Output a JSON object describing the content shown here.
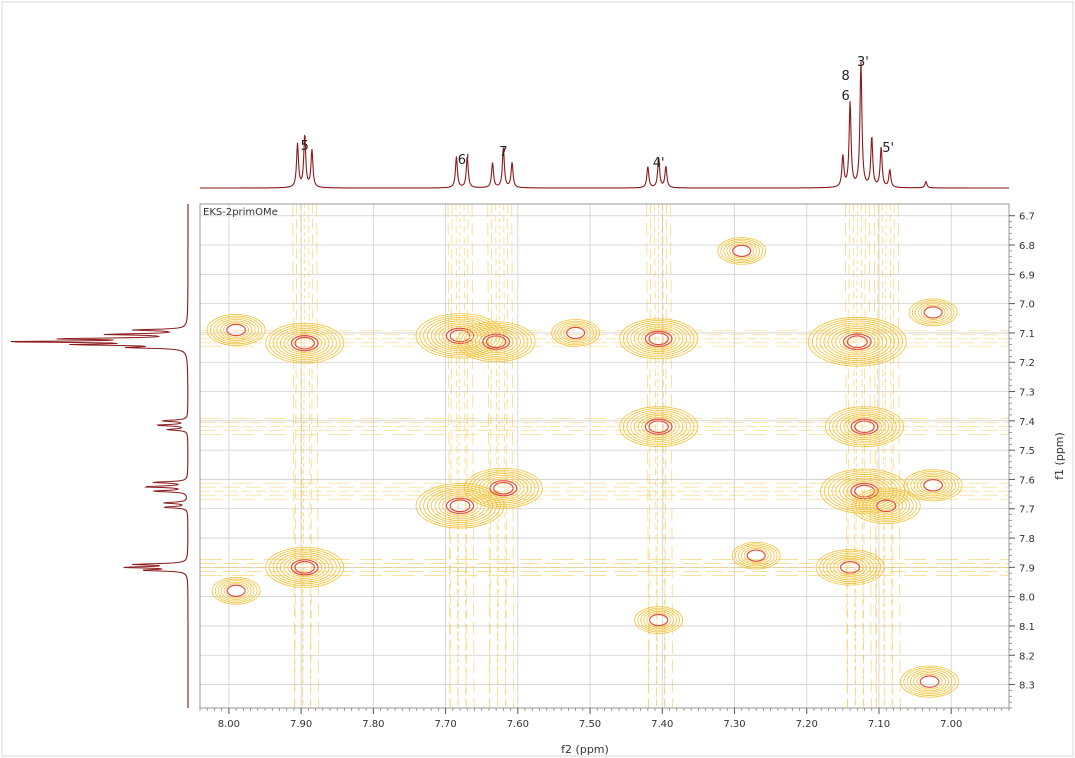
{
  "chart_data": {
    "type": "contour",
    "title": "",
    "dataset_label": "EKS-2primOMe",
    "xlabel": "f2 (ppm)",
    "ylabel": "f1 (ppm)",
    "xlim": [
      8.04,
      6.92
    ],
    "ylim": [
      6.66,
      8.38
    ],
    "x_ticks": [
      "8.00",
      "7.90",
      "7.80",
      "7.70",
      "7.60",
      "7.50",
      "7.40",
      "7.30",
      "7.20",
      "7.10",
      "7.00"
    ],
    "y_ticks": [
      "6.7",
      "6.8",
      "6.9",
      "7.0",
      "7.1",
      "7.2",
      "7.3",
      "7.4",
      "7.5",
      "7.6",
      "7.7",
      "7.8",
      "7.9",
      "8.0",
      "8.1",
      "8.2",
      "8.3"
    ],
    "grid": true,
    "colors": {
      "spectrum": "#8b1a1a",
      "contour_low": "#f3c23a",
      "contour_high": "#e0503c",
      "grid": "#cfcfcf"
    },
    "top_spectrum_labels": [
      {
        "text": "5",
        "ppm": 7.895
      },
      {
        "text": "6'",
        "ppm": 7.675
      },
      {
        "text": "7",
        "ppm": 7.62
      },
      {
        "text": "4'",
        "ppm": 7.405
      },
      {
        "text": "6",
        "ppm": 7.135
      },
      {
        "text": "8",
        "ppm": 7.135
      },
      {
        "text": "3'",
        "ppm": 7.125
      },
      {
        "text": "5'",
        "ppm": 7.09
      }
    ],
    "spectrum_peaks": [
      {
        "ppm": 7.905,
        "height": 0.35
      },
      {
        "ppm": 7.895,
        "height": 0.42
      },
      {
        "ppm": 7.885,
        "height": 0.3
      },
      {
        "ppm": 7.685,
        "height": 0.25
      },
      {
        "ppm": 7.67,
        "height": 0.25
      },
      {
        "ppm": 7.635,
        "height": 0.2
      },
      {
        "ppm": 7.62,
        "height": 0.32
      },
      {
        "ppm": 7.608,
        "height": 0.2
      },
      {
        "ppm": 7.42,
        "height": 0.17
      },
      {
        "ppm": 7.405,
        "height": 0.24
      },
      {
        "ppm": 7.395,
        "height": 0.17
      },
      {
        "ppm": 7.15,
        "height": 0.25
      },
      {
        "ppm": 7.14,
        "height": 0.68
      },
      {
        "ppm": 7.125,
        "height": 1.0
      },
      {
        "ppm": 7.11,
        "height": 0.4
      },
      {
        "ppm": 7.097,
        "height": 0.32
      },
      {
        "ppm": 7.085,
        "height": 0.14
      },
      {
        "ppm": 7.035,
        "height": 0.05
      }
    ],
    "cross_peaks": [
      {
        "f2": 7.895,
        "f1": 7.135,
        "level": 5
      },
      {
        "f2": 7.895,
        "f1": 7.9,
        "level": 5
      },
      {
        "f2": 7.99,
        "f1": 7.09,
        "level": 3
      },
      {
        "f2": 7.99,
        "f1": 7.98,
        "level": 2
      },
      {
        "f2": 7.68,
        "f1": 7.11,
        "level": 6
      },
      {
        "f2": 7.63,
        "f1": 7.13,
        "level": 5
      },
      {
        "f2": 7.68,
        "f1": 7.69,
        "level": 6
      },
      {
        "f2": 7.62,
        "f1": 7.63,
        "level": 5
      },
      {
        "f2": 7.405,
        "f1": 7.12,
        "level": 5
      },
      {
        "f2": 7.405,
        "f1": 7.42,
        "level": 5
      },
      {
        "f2": 7.405,
        "f1": 8.08,
        "level": 2
      },
      {
        "f2": 7.13,
        "f1": 7.13,
        "level": 7
      },
      {
        "f2": 7.12,
        "f1": 7.42,
        "level": 5
      },
      {
        "f2": 7.12,
        "f1": 7.64,
        "level": 6
      },
      {
        "f2": 7.09,
        "f1": 7.69,
        "level": 4
      },
      {
        "f2": 7.14,
        "f1": 7.9,
        "level": 4
      },
      {
        "f2": 7.025,
        "f1": 7.62,
        "level": 3
      },
      {
        "f2": 7.025,
        "f1": 7.03,
        "level": 2
      },
      {
        "f2": 7.03,
        "f1": 8.29,
        "level": 3
      },
      {
        "f2": 7.27,
        "f1": 7.86,
        "level": 2
      },
      {
        "f2": 7.29,
        "f1": 6.82,
        "level": 2
      },
      {
        "f2": 7.52,
        "f1": 7.1,
        "level": 2
      }
    ]
  }
}
